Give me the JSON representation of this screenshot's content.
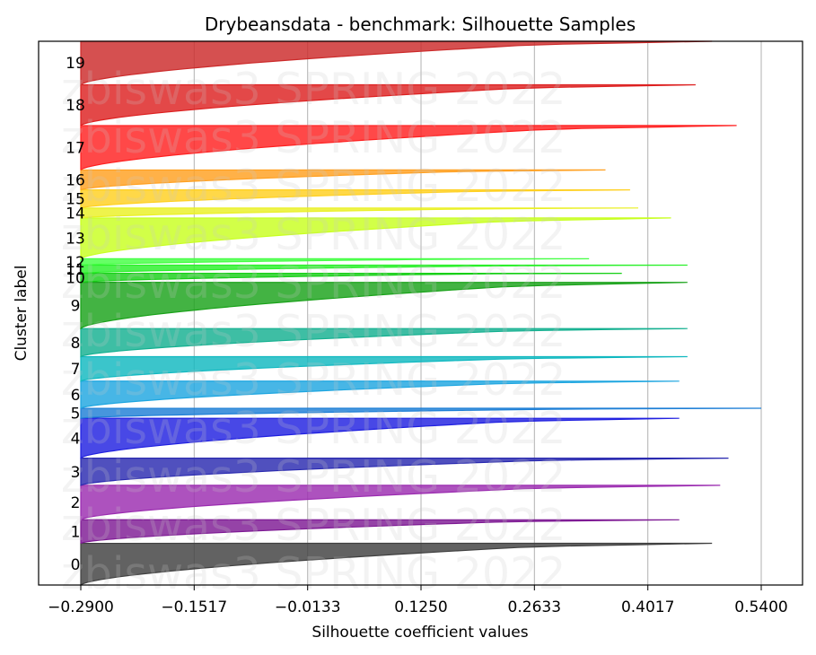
{
  "chart_data": {
    "type": "area",
    "title": "Drybeansdata - benchmark: Silhouette Samples",
    "xlabel": "Silhouette coefficient values",
    "ylabel": "Cluster label",
    "xlim": [
      -0.29,
      0.54
    ],
    "xticks": [
      "-0.2900",
      "-0.1517",
      "-0.0133",
      "0.1250",
      "0.2633",
      "0.4017",
      "0.5400"
    ],
    "xtick_values": [
      -0.29,
      -0.1517,
      -0.0133,
      0.125,
      0.2633,
      0.4017,
      0.54
    ],
    "grid": "vertical",
    "watermark": "zbiswas3 SPRING 2022",
    "series": [
      {
        "name": "0",
        "color": "#404040",
        "start": 0,
        "end": 460,
        "min": -0.29,
        "max": 0.48
      },
      {
        "name": "1",
        "color": "#7e1a94",
        "start": 460,
        "end": 720,
        "min": -0.29,
        "max": 0.44
      },
      {
        "name": "2",
        "color": "#9b2cb0",
        "start": 720,
        "end": 1100,
        "min": -0.29,
        "max": 0.49
      },
      {
        "name": "3",
        "color": "#2a2ab0",
        "start": 1100,
        "end": 1400,
        "min": -0.29,
        "max": 0.5
      },
      {
        "name": "4",
        "color": "#2020e0",
        "start": 1400,
        "end": 1840,
        "min": -0.29,
        "max": 0.44
      },
      {
        "name": "5",
        "color": "#1e7fd6",
        "start": 1840,
        "end": 1950,
        "min": -0.29,
        "max": 0.54
      },
      {
        "name": "6",
        "color": "#1ea6e0",
        "start": 1950,
        "end": 2250,
        "min": -0.29,
        "max": 0.44
      },
      {
        "name": "7",
        "color": "#10b8c0",
        "start": 2250,
        "end": 2520,
        "min": -0.29,
        "max": 0.45
      },
      {
        "name": "8",
        "color": "#14b090",
        "start": 2520,
        "end": 2830,
        "min": -0.29,
        "max": 0.45
      },
      {
        "name": "9",
        "color": "#1aa21a",
        "start": 2830,
        "end": 3340,
        "min": -0.29,
        "max": 0.45
      },
      {
        "name": "10",
        "color": "#18d018",
        "start": 3340,
        "end": 3440,
        "min": -0.29,
        "max": 0.37
      },
      {
        "name": "11",
        "color": "#2af02a",
        "start": 3440,
        "end": 3530,
        "min": -0.29,
        "max": 0.45
      },
      {
        "name": "12",
        "color": "#44ff44",
        "start": 3530,
        "end": 3600,
        "min": -0.29,
        "max": 0.33
      },
      {
        "name": "13",
        "color": "#c8ff20",
        "start": 3600,
        "end": 4050,
        "min": -0.29,
        "max": 0.43
      },
      {
        "name": "14",
        "color": "#eaf024",
        "start": 4050,
        "end": 4160,
        "min": -0.29,
        "max": 0.39
      },
      {
        "name": "15",
        "color": "#ffd020",
        "start": 4160,
        "end": 4360,
        "min": -0.29,
        "max": 0.38
      },
      {
        "name": "16",
        "color": "#ffa020",
        "start": 4360,
        "end": 4580,
        "min": -0.29,
        "max": 0.35
      },
      {
        "name": "17",
        "color": "#ff2020",
        "start": 4580,
        "end": 5070,
        "min": -0.29,
        "max": 0.51
      },
      {
        "name": "18",
        "color": "#dd2020",
        "start": 5070,
        "end": 5520,
        "min": -0.29,
        "max": 0.46
      },
      {
        "name": "19",
        "color": "#cc2a2a",
        "start": 5520,
        "end": 6000,
        "min": -0.29,
        "max": 0.48
      }
    ]
  }
}
